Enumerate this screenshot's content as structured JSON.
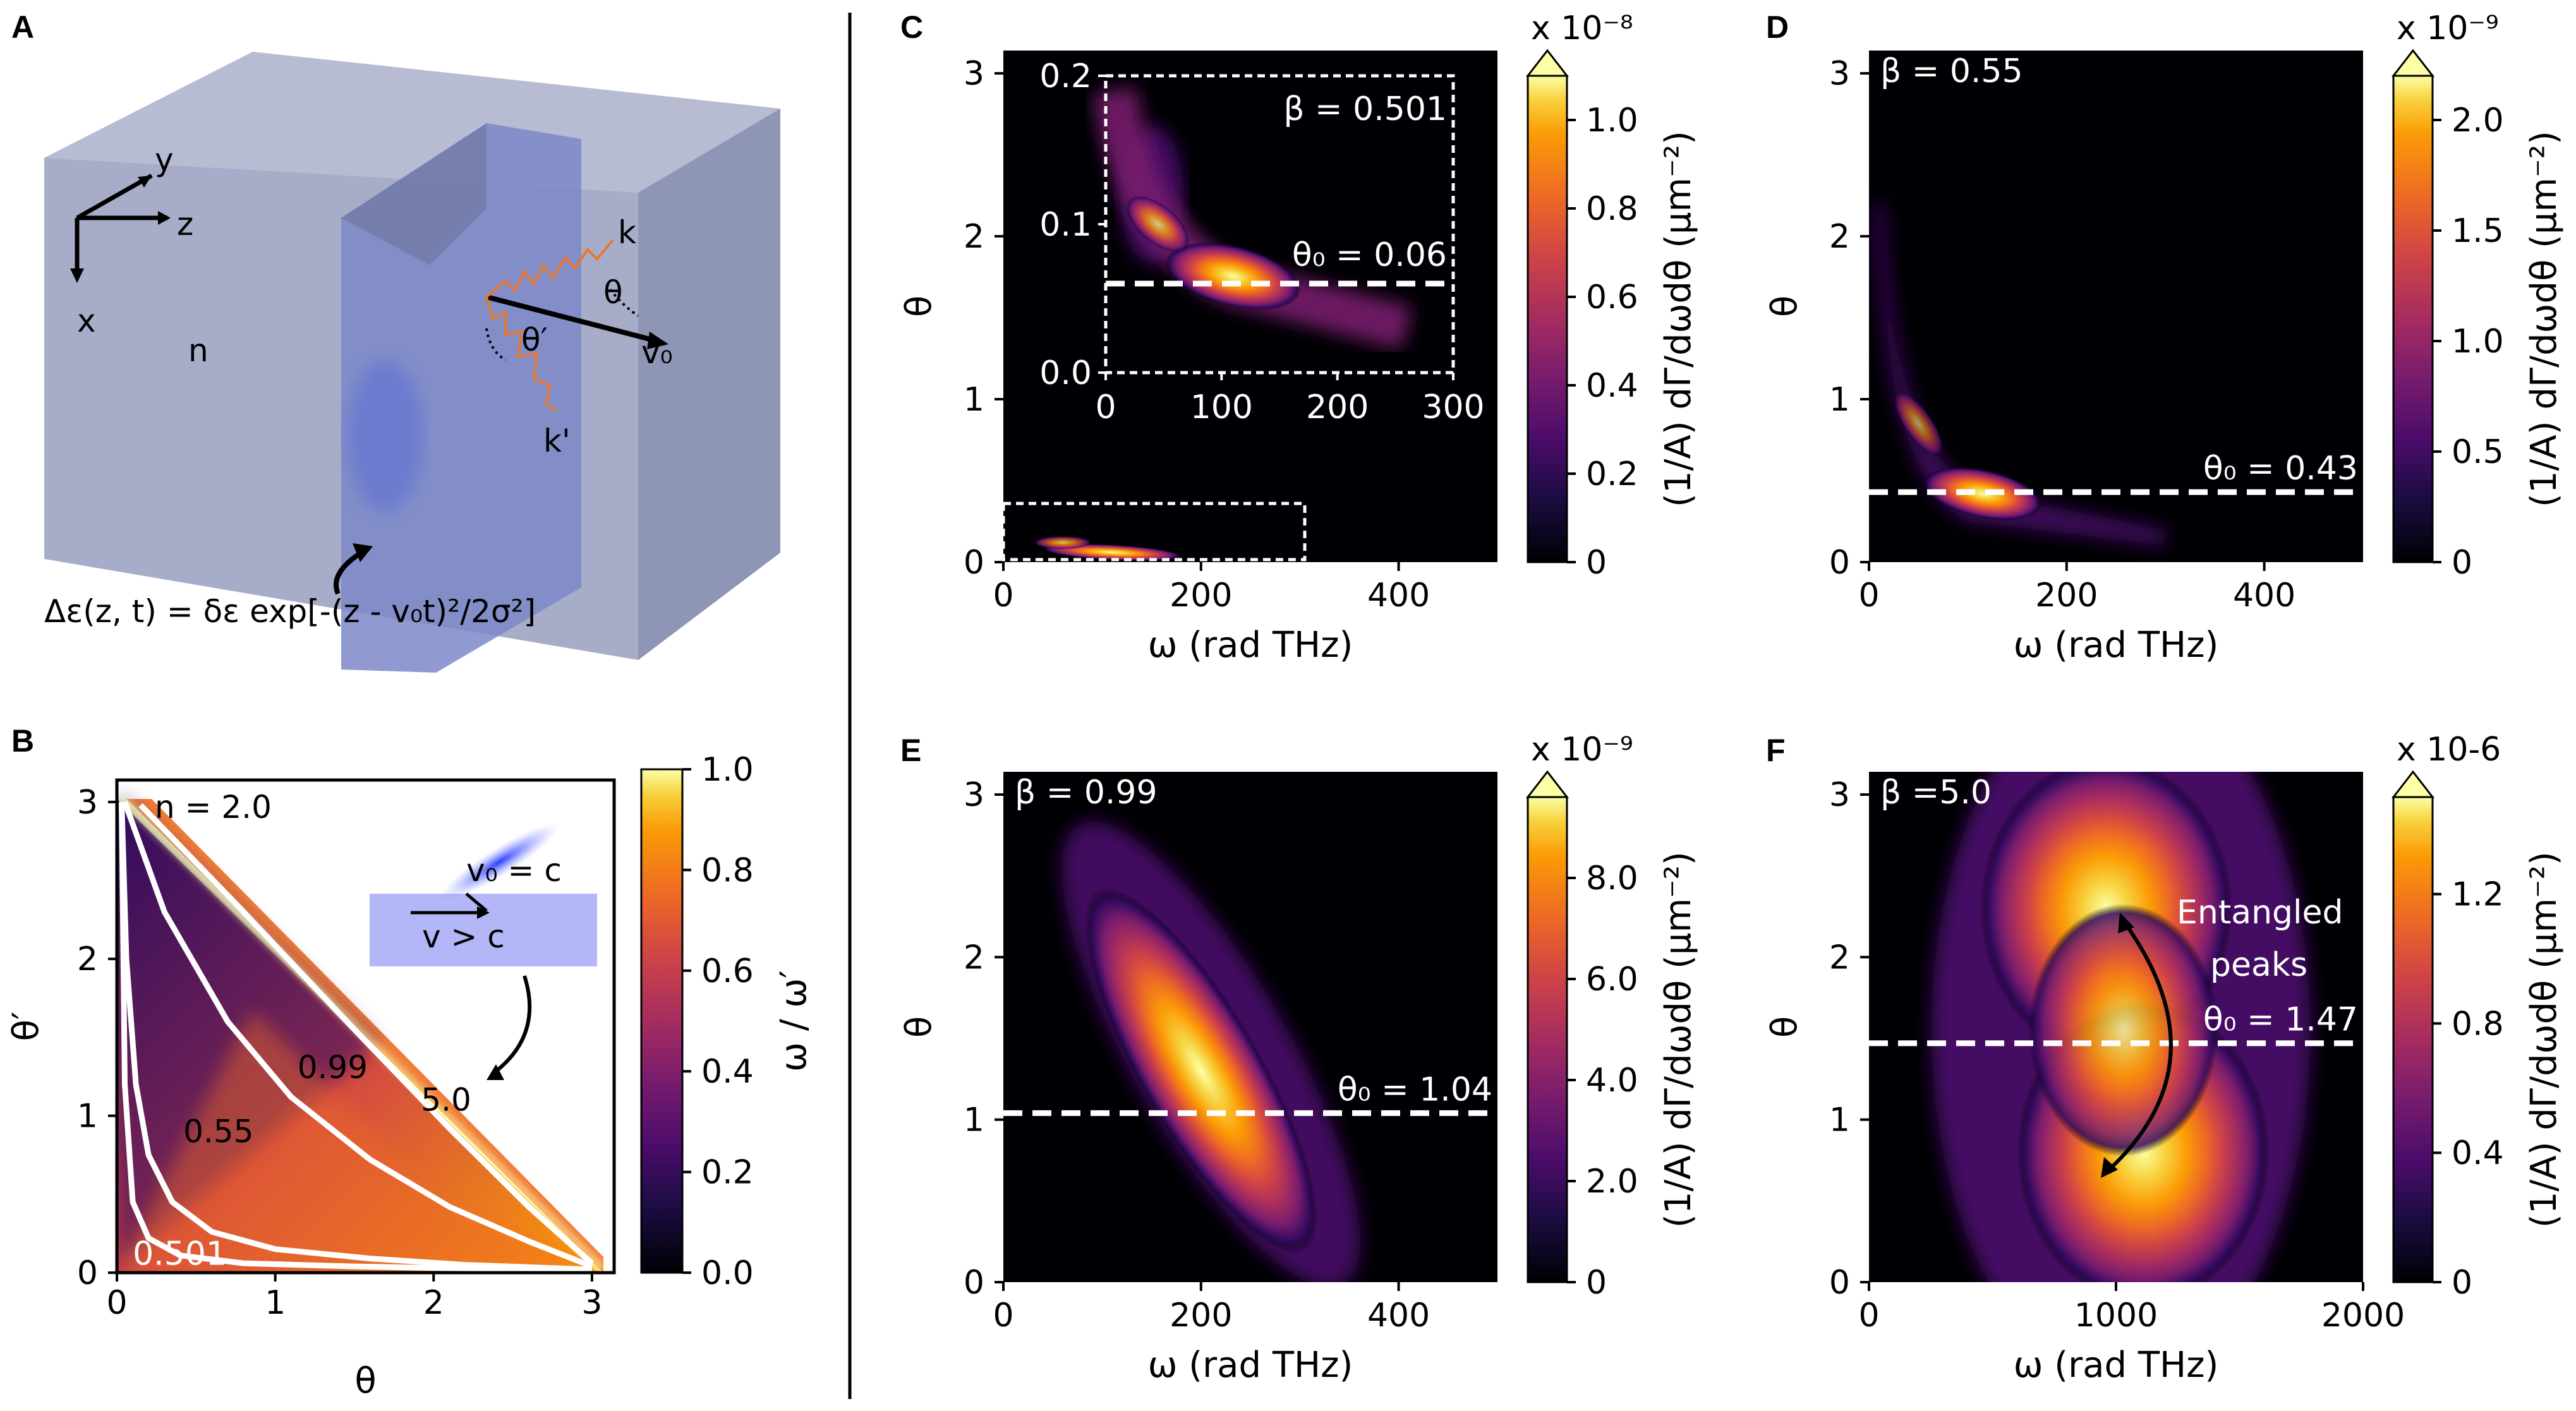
{
  "panels": {
    "A": {
      "label": "A",
      "axis_x": "x",
      "axis_y": "y",
      "axis_z": "z",
      "medium": "n",
      "k": "k",
      "k_prime": "k'",
      "theta": "θ",
      "theta_prime": "θ′",
      "v0": "v₀",
      "equation": "Δε(z, t) = δε exp[-(z - v₀t)²/2σ²]"
    },
    "B": {
      "label": "B",
      "n_label": "n = 2.0",
      "v0_label": "v₀ = c",
      "v_label": "v > c",
      "cb_title": "ω / ω′"
    },
    "C": {
      "label": "C"
    },
    "D": {
      "label": "D"
    },
    "E": {
      "label": "E"
    },
    "F": {
      "label": "F",
      "annotation_line1": "Entangled",
      "annotation_line2": "peaks"
    }
  },
  "colors": {
    "inferno_dark": "#000004",
    "inferno_mid": "#bc3754",
    "inferno_bright": "#fcffa4",
    "dashed": "#ffffff",
    "beam": "#3c50ff",
    "pulse": "#a9adf7",
    "photon": "#e8772e",
    "box": "#9ca3c2"
  },
  "chart_data": [
    {
      "panel": "B",
      "type": "heatmap",
      "xlabel": "θ",
      "ylabel": "θ′",
      "xlim": [
        0,
        3.14
      ],
      "ylim": [
        0,
        3.14
      ],
      "xticks": [
        "0",
        "1",
        "2",
        "3"
      ],
      "yticks": [
        "0",
        "1",
        "2",
        "3"
      ],
      "colorbar": {
        "label": "ω / ω′",
        "ticks": [
          "0.0",
          "0.2",
          "0.4",
          "0.6",
          "0.8",
          "1.0"
        ],
        "range": [
          0,
          1
        ]
      },
      "curves": [
        {
          "beta": "0.501",
          "points": [
            [
              0.03,
              3.0
            ],
            [
              0.05,
              1.2
            ],
            [
              0.1,
              0.45
            ],
            [
              0.2,
              0.22
            ],
            [
              0.4,
              0.11
            ],
            [
              0.8,
              0.06
            ],
            [
              1.5,
              0.04
            ],
            [
              2.0,
              0.03
            ],
            [
              3.0,
              0.02
            ]
          ]
        },
        {
          "beta": "0.55",
          "points": [
            [
              0.03,
              3.0
            ],
            [
              0.06,
              2.0
            ],
            [
              0.12,
              1.2
            ],
            [
              0.2,
              0.75
            ],
            [
              0.35,
              0.45
            ],
            [
              0.6,
              0.26
            ],
            [
              1.0,
              0.15
            ],
            [
              1.6,
              0.09
            ],
            [
              2.2,
              0.05
            ],
            [
              3.0,
              0.02
            ]
          ]
        },
        {
          "beta": "0.99",
          "points": [
            [
              0.05,
              3.0
            ],
            [
              0.3,
              2.3
            ],
            [
              0.7,
              1.6
            ],
            [
              1.1,
              1.12
            ],
            [
              1.6,
              0.72
            ],
            [
              2.1,
              0.42
            ],
            [
              2.6,
              0.2
            ],
            [
              3.0,
              0.04
            ]
          ]
        },
        {
          "beta": "5.0",
          "points": [
            [
              0.15,
              2.98
            ],
            [
              0.8,
              2.3
            ],
            [
              1.5,
              1.55
            ],
            [
              2.1,
              0.92
            ],
            [
              2.6,
              0.42
            ],
            [
              3.0,
              0.06
            ]
          ]
        }
      ]
    },
    {
      "panel": "C",
      "type": "heatmap",
      "xlabel": "ω (rad THz)",
      "ylabel": "θ",
      "xlim": [
        0,
        500
      ],
      "ylim": [
        0,
        3.14
      ],
      "xticks": [
        "0",
        "200",
        "400"
      ],
      "yticks": [
        "0",
        "1",
        "2",
        "3"
      ],
      "colorbar": {
        "label": "(1/A) dΓ/dωdθ (μm⁻²)",
        "exponent": "x 10⁻⁸",
        "ticks": [
          "0",
          "0.2",
          "0.4",
          "0.6",
          "0.8",
          "1.0"
        ],
        "range": [
          0,
          1.1
        ]
      },
      "beta": "β = 0.501",
      "theta0": "θ₀ = 0.06",
      "inset": {
        "xlim": [
          0,
          300
        ],
        "ylim": [
          0,
          0.2
        ],
        "xticks": [
          "0",
          "100",
          "200",
          "300"
        ],
        "yticks": [
          "0.0",
          "0.1",
          "0.2"
        ]
      }
    },
    {
      "panel": "D",
      "type": "heatmap",
      "xlabel": "ω (rad THz)",
      "ylabel": "θ",
      "xlim": [
        0,
        500
      ],
      "ylim": [
        0,
        3.14
      ],
      "xticks": [
        "0",
        "200",
        "400"
      ],
      "yticks": [
        "0",
        "1",
        "2",
        "3"
      ],
      "colorbar": {
        "label": "(1/A) dΓ/dωdθ (μm⁻²)",
        "exponent": "x 10⁻⁹",
        "ticks": [
          "0",
          "0.5",
          "1.0",
          "1.5",
          "2.0"
        ],
        "range": [
          0,
          2.2
        ]
      },
      "beta": "β = 0.55",
      "theta0": "θ₀ = 0.43"
    },
    {
      "panel": "E",
      "type": "heatmap",
      "xlabel": "ω (rad THz)",
      "ylabel": "θ",
      "xlim": [
        0,
        500
      ],
      "ylim": [
        0,
        3.14
      ],
      "xticks": [
        "0",
        "200",
        "400"
      ],
      "yticks": [
        "0",
        "1",
        "2",
        "3"
      ],
      "colorbar": {
        "label": "(1/A) dΓ/dωdθ (μm⁻²)",
        "exponent": "x 10⁻⁹",
        "ticks": [
          "0",
          "2.0",
          "4.0",
          "6.0",
          "8.0"
        ],
        "range": [
          0,
          9.6
        ]
      },
      "beta": "β = 0.99",
      "theta0": "θ₀ = 1.04"
    },
    {
      "panel": "F",
      "type": "heatmap",
      "xlabel": "ω (rad THz)",
      "ylabel": "θ",
      "xlim": [
        0,
        2000
      ],
      "ylim": [
        0,
        3.14
      ],
      "xticks": [
        "0",
        "1000",
        "2000"
      ],
      "yticks": [
        "0",
        "1",
        "2",
        "3"
      ],
      "colorbar": {
        "label": "(1/A) dΓ/dωdθ (μm⁻²)",
        "exponent": "x 10-6",
        "ticks": [
          "0",
          "0.4",
          "0.8",
          "1.2"
        ],
        "range": [
          0,
          1.5
        ]
      },
      "beta": "β =5.0",
      "theta0": "θ₀ = 1.47"
    }
  ]
}
